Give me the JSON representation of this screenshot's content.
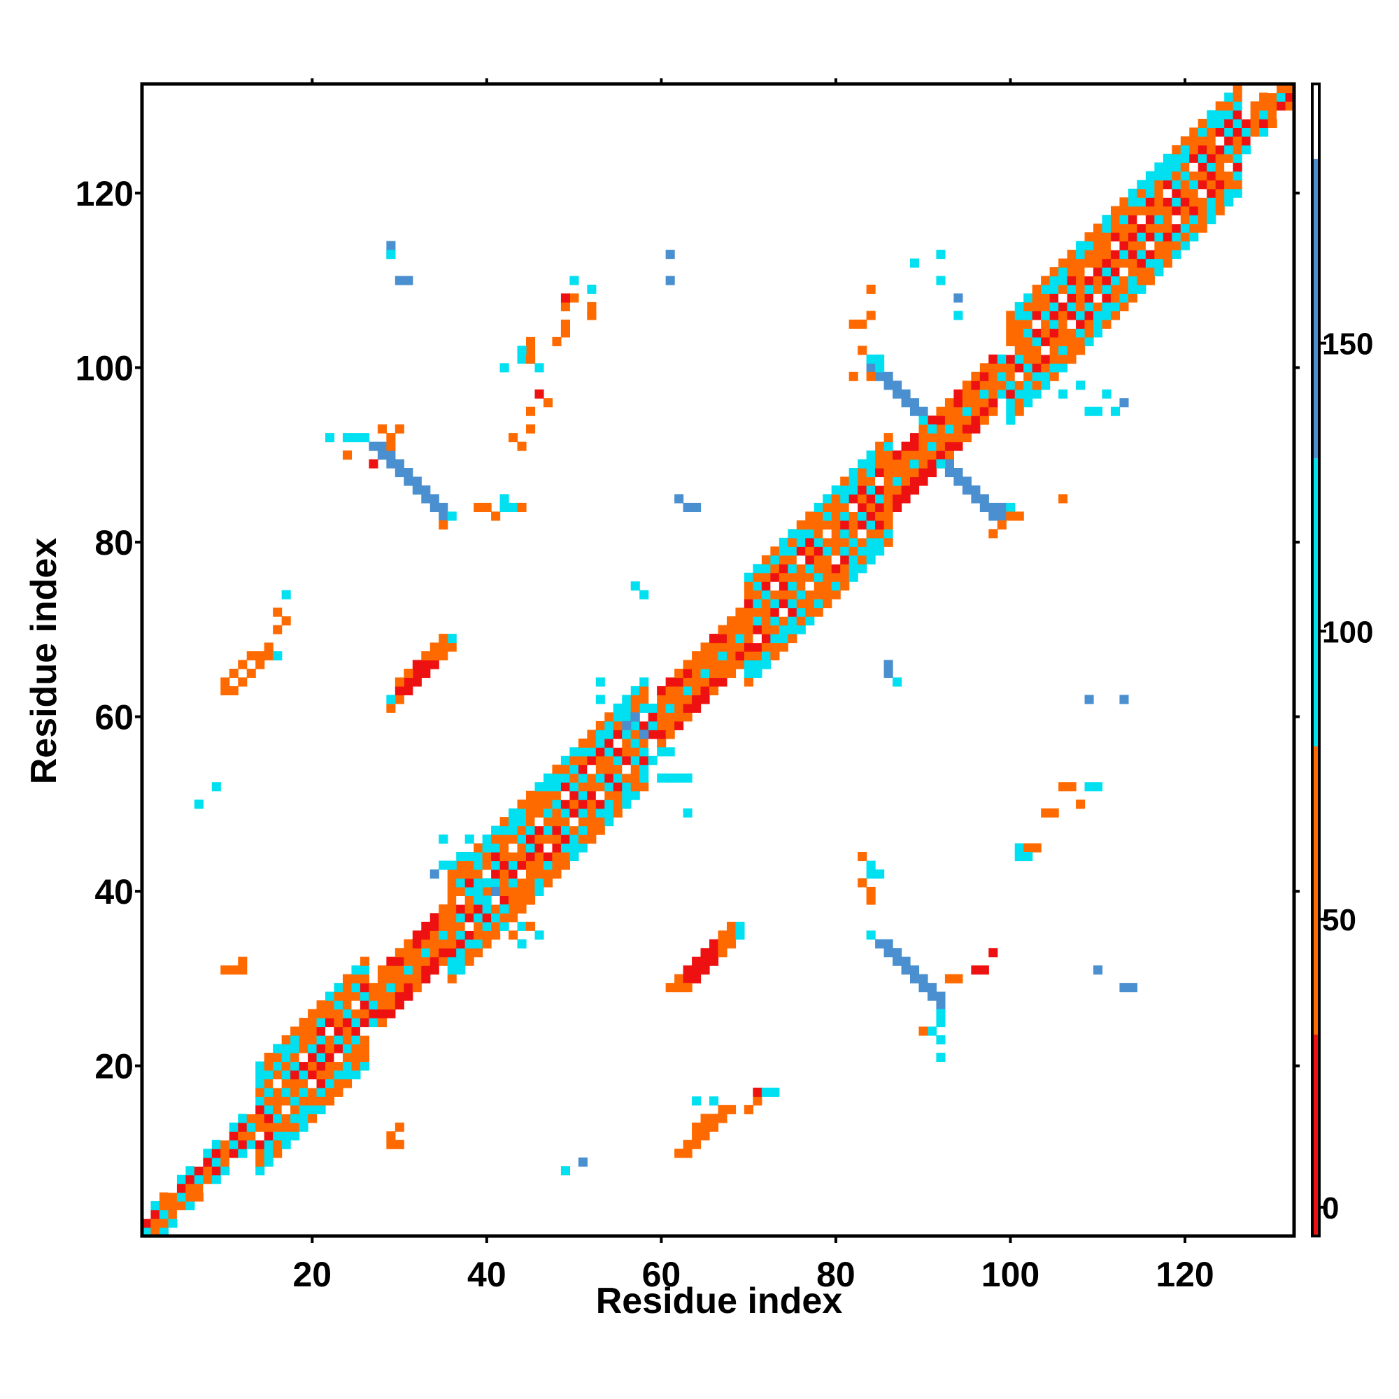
{
  "chart_data": {
    "type": "heatmap",
    "title": "",
    "xlabel": "Residue index",
    "ylabel": "Residue index",
    "xlim": [
      0.5,
      132.5
    ],
    "ylim": [
      0.5,
      132.5
    ],
    "x_ticks": [
      20,
      40,
      60,
      80,
      100,
      120
    ],
    "y_ticks": [
      20,
      40,
      60,
      80,
      100,
      120
    ],
    "colorbar": {
      "ticks": [
        0,
        50,
        100,
        150
      ],
      "range": [
        -5,
        195
      ],
      "bands": [
        {
          "from": -5,
          "to": 30,
          "color": "#ee1111"
        },
        {
          "from": 30,
          "to": 80,
          "color": "#ff6a00"
        },
        {
          "from": 80,
          "to": 130,
          "color": "#00e0f0"
        },
        {
          "from": 130,
          "to": 182,
          "color": "#4a8fcf"
        },
        {
          "from": 182,
          "to": 195,
          "color": "#ffffff"
        }
      ]
    },
    "grid": false,
    "legend": "colorbar-right",
    "bands_approx": [
      {
        "desc": "main diagonal",
        "u0": 0,
        "u1": 132,
        "v0": -6,
        "v1": 6,
        "value": "diag"
      },
      {
        "desc": "beta hairpin 10-17/64-70",
        "u0": 74,
        "u1": 84,
        "v0": 49,
        "v1": 55,
        "value": 40
      },
      {
        "desc": "beta 29-35/62-68",
        "u0": 92,
        "u1": 102,
        "v0": 29,
        "v1": 35,
        "value": 25
      },
      {
        "desc": "antiparallel 34-29/84-90",
        "u0": 114,
        "u1": 125,
        "v0": 52,
        "v1": 62,
        "value": 160
      },
      {
        "desc": "antiparallel 89-99/84-95",
        "u0": 178,
        "u1": 194,
        "v0": -8,
        "v1": 10,
        "value": 160
      }
    ]
  },
  "cells": [
    [
      10,
      64,
      35
    ],
    [
      11,
      65,
      35
    ],
    [
      12,
      66,
      40
    ],
    [
      13,
      67,
      40
    ],
    [
      14,
      67,
      45
    ],
    [
      10,
      63,
      40
    ],
    [
      11,
      63,
      35
    ],
    [
      12,
      64,
      40
    ],
    [
      13,
      65,
      45
    ],
    [
      14,
      66,
      45
    ],
    [
      15,
      68,
      50
    ],
    [
      15,
      67,
      50
    ],
    [
      16,
      67,
      90
    ],
    [
      29,
      61,
      45
    ],
    [
      30,
      62,
      30
    ],
    [
      31,
      63,
      20
    ],
    [
      32,
      64,
      15
    ],
    [
      33,
      65,
      20
    ],
    [
      34,
      66,
      25
    ],
    [
      35,
      67,
      40
    ],
    [
      36,
      68,
      55
    ],
    [
      30,
      63,
      25
    ],
    [
      31,
      64,
      20
    ],
    [
      32,
      65,
      20
    ],
    [
      33,
      66,
      25
    ],
    [
      34,
      67,
      30
    ],
    [
      35,
      68,
      35
    ],
    [
      36,
      69,
      90
    ],
    [
      29,
      62,
      90
    ],
    [
      30,
      64,
      30
    ],
    [
      31,
      65,
      30
    ],
    [
      32,
      66,
      25
    ],
    [
      33,
      67,
      35
    ],
    [
      34,
      68,
      50
    ],
    [
      35,
      69,
      60
    ],
    [
      62,
      10,
      55
    ],
    [
      63,
      11,
      45
    ],
    [
      64,
      12,
      40
    ],
    [
      65,
      13,
      40
    ],
    [
      66,
      14,
      45
    ],
    [
      67,
      15,
      50
    ],
    [
      63,
      10,
      45
    ],
    [
      64,
      11,
      40
    ],
    [
      65,
      12,
      40
    ],
    [
      66,
      13,
      45
    ],
    [
      67,
      14,
      45
    ],
    [
      68,
      15,
      50
    ],
    [
      66,
      16,
      90
    ],
    [
      64,
      13,
      45
    ],
    [
      65,
      14,
      40
    ],
    [
      61,
      29,
      45
    ],
    [
      62,
      30,
      30
    ],
    [
      63,
      31,
      20
    ],
    [
      64,
      32,
      15
    ],
    [
      65,
      33,
      20
    ],
    [
      66,
      34,
      25
    ],
    [
      67,
      35,
      40
    ],
    [
      68,
      36,
      55
    ],
    [
      62,
      29,
      40
    ],
    [
      63,
      30,
      25
    ],
    [
      64,
      31,
      20
    ],
    [
      65,
      32,
      20
    ],
    [
      66,
      33,
      25
    ],
    [
      67,
      34,
      30
    ],
    [
      68,
      35,
      35
    ],
    [
      69,
      36,
      90
    ],
    [
      63,
      29,
      30
    ],
    [
      64,
      30,
      25
    ],
    [
      65,
      31,
      20
    ],
    [
      66,
      32,
      25
    ],
    [
      67,
      33,
      40
    ],
    [
      68,
      34,
      45
    ],
    [
      69,
      35,
      90
    ],
    [
      26,
      92,
      90
    ],
    [
      27,
      91,
      150
    ],
    [
      28,
      90,
      150
    ],
    [
      29,
      89,
      150
    ],
    [
      30,
      88,
      150
    ],
    [
      31,
      87,
      150
    ],
    [
      32,
      86,
      150
    ],
    [
      33,
      85,
      150
    ],
    [
      34,
      84,
      150
    ],
    [
      35,
      83,
      150
    ],
    [
      28,
      91,
      150
    ],
    [
      29,
      90,
      150
    ],
    [
      30,
      89,
      150
    ],
    [
      31,
      88,
      150
    ],
    [
      32,
      87,
      150
    ],
    [
      33,
      86,
      150
    ],
    [
      34,
      85,
      150
    ],
    [
      35,
      84,
      150
    ],
    [
      29,
      92,
      60
    ],
    [
      30,
      93,
      60
    ],
    [
      28,
      93,
      40
    ],
    [
      24,
      92,
      100
    ],
    [
      25,
      92,
      100
    ],
    [
      22,
      92,
      90
    ],
    [
      29,
      91,
      40
    ],
    [
      24,
      90,
      50
    ],
    [
      27,
      89,
      20
    ],
    [
      35,
      82,
      60
    ],
    [
      36,
      83,
      90
    ],
    [
      84,
      35,
      90
    ],
    [
      85,
      34,
      150
    ],
    [
      86,
      33,
      150
    ],
    [
      87,
      32,
      150
    ],
    [
      88,
      31,
      150
    ],
    [
      89,
      30,
      150
    ],
    [
      90,
      29,
      150
    ],
    [
      91,
      28,
      150
    ],
    [
      92,
      27,
      150
    ],
    [
      86,
      34,
      150
    ],
    [
      87,
      33,
      150
    ],
    [
      88,
      32,
      150
    ],
    [
      89,
      31,
      150
    ],
    [
      90,
      30,
      150
    ],
    [
      91,
      29,
      150
    ],
    [
      92,
      28,
      150
    ],
    [
      92,
      26,
      90
    ],
    [
      92,
      25,
      90
    ],
    [
      91,
      24,
      90
    ],
    [
      90,
      24,
      30
    ],
    [
      93,
      30,
      60
    ],
    [
      94,
      30,
      60
    ],
    [
      96,
      31,
      20
    ],
    [
      97,
      31,
      20
    ],
    [
      98,
      33,
      20
    ],
    [
      92,
      23,
      90
    ],
    [
      92,
      21,
      90
    ],
    [
      84,
      100,
      150
    ],
    [
      85,
      99,
      150
    ],
    [
      86,
      98,
      150
    ],
    [
      87,
      97,
      150
    ],
    [
      88,
      96,
      150
    ],
    [
      89,
      95,
      150
    ],
    [
      90,
      94,
      90
    ],
    [
      91,
      93,
      90
    ],
    [
      85,
      100,
      90
    ],
    [
      86,
      99,
      150
    ],
    [
      87,
      98,
      150
    ],
    [
      88,
      97,
      150
    ],
    [
      89,
      96,
      150
    ],
    [
      90,
      95,
      150
    ],
    [
      84,
      101,
      90
    ],
    [
      85,
      101,
      90
    ],
    [
      83,
      102,
      40
    ],
    [
      82,
      99,
      50
    ],
    [
      84,
      99,
      60
    ],
    [
      93,
      89,
      150
    ],
    [
      94,
      88,
      150
    ],
    [
      95,
      87,
      150
    ],
    [
      96,
      86,
      150
    ],
    [
      97,
      85,
      150
    ],
    [
      98,
      84,
      150
    ],
    [
      99,
      83,
      150
    ],
    [
      92,
      89,
      90
    ],
    [
      93,
      88,
      150
    ],
    [
      94,
      87,
      150
    ],
    [
      95,
      86,
      150
    ],
    [
      96,
      85,
      150
    ],
    [
      97,
      84,
      150
    ],
    [
      98,
      83,
      150
    ],
    [
      99,
      84,
      150
    ],
    [
      100,
      84,
      90
    ],
    [
      100,
      83,
      60
    ],
    [
      99,
      82,
      40
    ],
    [
      98,
      81,
      40
    ],
    [
      101,
      83,
      40
    ],
    [
      106,
      85,
      40
    ],
    [
      39,
      84,
      40
    ],
    [
      40,
      84,
      30
    ],
    [
      41,
      83,
      30
    ],
    [
      42,
      84,
      90
    ],
    [
      43,
      84,
      90
    ],
    [
      44,
      84,
      40
    ],
    [
      42,
      85,
      90
    ],
    [
      84,
      39,
      40
    ],
    [
      84,
      40,
      30
    ],
    [
      83,
      41,
      30
    ],
    [
      84,
      42,
      90
    ],
    [
      84,
      43,
      90
    ],
    [
      83,
      44,
      40
    ],
    [
      85,
      42,
      90
    ],
    [
      106,
      52,
      40
    ],
    [
      107,
      52,
      30
    ],
    [
      108,
      50,
      30
    ],
    [
      109,
      52,
      90
    ],
    [
      105,
      49,
      40
    ],
    [
      104,
      49,
      60
    ],
    [
      101,
      45,
      90
    ],
    [
      102,
      45,
      60
    ],
    [
      103,
      45,
      40
    ],
    [
      101,
      44,
      90
    ],
    [
      102,
      44,
      90
    ],
    [
      110,
      31,
      150
    ],
    [
      113,
      29,
      150
    ],
    [
      114,
      29,
      150
    ],
    [
      110,
      52,
      90
    ],
    [
      52,
      106,
      40
    ],
    [
      52,
      107,
      30
    ],
    [
      50,
      108,
      30
    ],
    [
      52,
      109,
      90
    ],
    [
      49,
      105,
      40
    ],
    [
      49,
      104,
      60
    ],
    [
      45,
      101,
      90
    ],
    [
      45,
      102,
      60
    ],
    [
      45,
      103,
      40
    ],
    [
      44,
      101,
      90
    ],
    [
      44,
      102,
      90
    ],
    [
      31,
      110,
      150
    ],
    [
      29,
      113,
      150
    ],
    [
      29,
      114,
      150
    ],
    [
      29,
      113,
      90
    ],
    [
      30,
      110,
      150
    ],
    [
      48,
      103,
      30
    ],
    [
      49,
      107,
      60
    ],
    [
      49,
      108,
      20
    ],
    [
      50,
      110,
      90
    ],
    [
      52,
      106,
      60
    ],
    [
      45,
      101,
      60
    ],
    [
      46,
      100,
      90
    ],
    [
      42,
      100,
      90
    ],
    [
      61,
      113,
      150
    ],
    [
      61,
      110,
      150
    ],
    [
      84,
      109,
      40
    ],
    [
      84,
      106,
      40
    ],
    [
      82,
      105,
      60
    ],
    [
      83,
      105,
      60
    ],
    [
      92,
      110,
      90
    ],
    [
      92,
      113,
      90
    ],
    [
      94,
      108,
      150
    ],
    [
      94,
      106,
      90
    ],
    [
      89,
      112,
      90
    ],
    [
      10,
      31,
      40
    ],
    [
      11,
      31,
      50
    ],
    [
      12,
      31,
      60
    ],
    [
      12,
      32,
      50
    ],
    [
      29,
      12,
      45
    ],
    [
      30,
      13,
      50
    ],
    [
      30,
      11,
      40
    ],
    [
      29,
      11,
      45
    ],
    [
      49,
      8,
      90
    ],
    [
      51,
      9,
      150
    ],
    [
      71,
      16,
      40
    ],
    [
      71,
      17,
      20
    ],
    [
      70,
      15,
      60
    ],
    [
      72,
      17,
      90
    ],
    [
      73,
      17,
      90
    ],
    [
      64,
      16,
      90
    ],
    [
      45,
      93,
      45
    ],
    [
      45,
      95,
      40
    ],
    [
      44,
      91,
      30
    ],
    [
      43,
      92,
      40
    ],
    [
      46,
      97,
      20
    ],
    [
      47,
      96,
      60
    ],
    [
      62,
      85,
      150
    ],
    [
      63,
      84,
      150
    ],
    [
      64,
      84,
      150
    ],
    [
      57,
      75,
      90
    ],
    [
      58,
      74,
      90
    ],
    [
      53,
      64,
      90
    ],
    [
      53,
      62,
      90
    ],
    [
      55,
      61,
      90
    ],
    [
      17,
      74,
      90
    ],
    [
      16,
      72,
      40
    ],
    [
      17,
      71,
      50
    ],
    [
      16,
      70,
      60
    ],
    [
      16,
      67,
      90
    ],
    [
      9,
      52,
      90
    ],
    [
      7,
      50,
      90
    ],
    [
      37,
      44,
      90
    ],
    [
      36,
      43,
      90
    ],
    [
      35,
      43,
      90
    ],
    [
      38,
      46,
      90
    ],
    [
      34,
      42,
      150
    ],
    [
      35,
      46,
      90
    ],
    [
      39,
      40,
      90
    ],
    [
      40,
      41,
      90
    ],
    [
      41,
      40,
      150
    ],
    [
      40,
      39,
      90
    ],
    [
      42,
      38,
      90
    ],
    [
      44,
      36,
      90
    ],
    [
      45,
      36,
      40
    ],
    [
      46,
      35,
      90
    ],
    [
      43,
      35,
      40
    ],
    [
      44,
      34,
      90
    ],
    [
      60,
      53,
      90
    ],
    [
      61,
      53,
      90
    ],
    [
      62,
      53,
      90
    ],
    [
      63,
      53,
      90
    ],
    [
      63,
      49,
      90
    ],
    [
      59,
      55,
      90
    ],
    [
      60,
      56,
      90
    ],
    [
      61,
      56,
      90
    ],
    [
      58,
      58,
      150
    ],
    [
      56,
      59,
      150
    ],
    [
      57,
      60,
      150
    ],
    [
      58,
      61,
      90
    ],
    [
      86,
      65,
      150
    ],
    [
      86,
      66,
      150
    ],
    [
      87,
      64,
      90
    ],
    [
      109,
      62,
      150
    ],
    [
      113,
      62,
      150
    ],
    [
      109,
      95,
      90
    ],
    [
      110,
      95,
      90
    ],
    [
      112,
      95,
      90
    ],
    [
      106,
      97,
      90
    ],
    [
      108,
      98,
      90
    ],
    [
      111,
      97,
      90
    ],
    [
      113,
      96,
      150
    ]
  ]
}
